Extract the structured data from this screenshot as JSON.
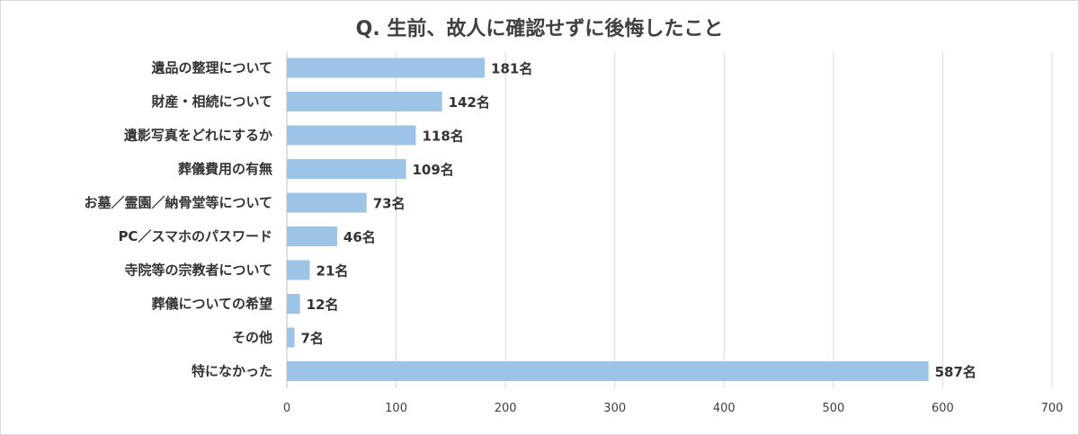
{
  "chart_data": {
    "type": "bar",
    "orientation": "horizontal",
    "title": "Q. 生前、故人に確認せずに後悔したこと",
    "categories": [
      "遺品の整理について",
      "財産・相続について",
      "遺影写真をどれにするか",
      "葬儀費用の有無",
      "お墓／霊園／納骨堂等について",
      "PC／スマホのパスワード",
      "寺院等の宗教者について",
      "葬儀についての希望",
      "その他",
      "特になかった"
    ],
    "values": [
      181,
      142,
      118,
      109,
      73,
      46,
      21,
      12,
      7,
      587
    ],
    "value_labels": [
      "181名",
      "142名",
      "118名",
      "109名",
      "73名",
      "46名",
      "21名",
      "12名",
      "7名",
      "587名"
    ],
    "xlim": [
      0,
      700
    ],
    "xticks": [
      "0",
      "100",
      "200",
      "300",
      "400",
      "500",
      "600",
      "700"
    ],
    "grid": true,
    "bar_color": "#9dc3e6"
  }
}
